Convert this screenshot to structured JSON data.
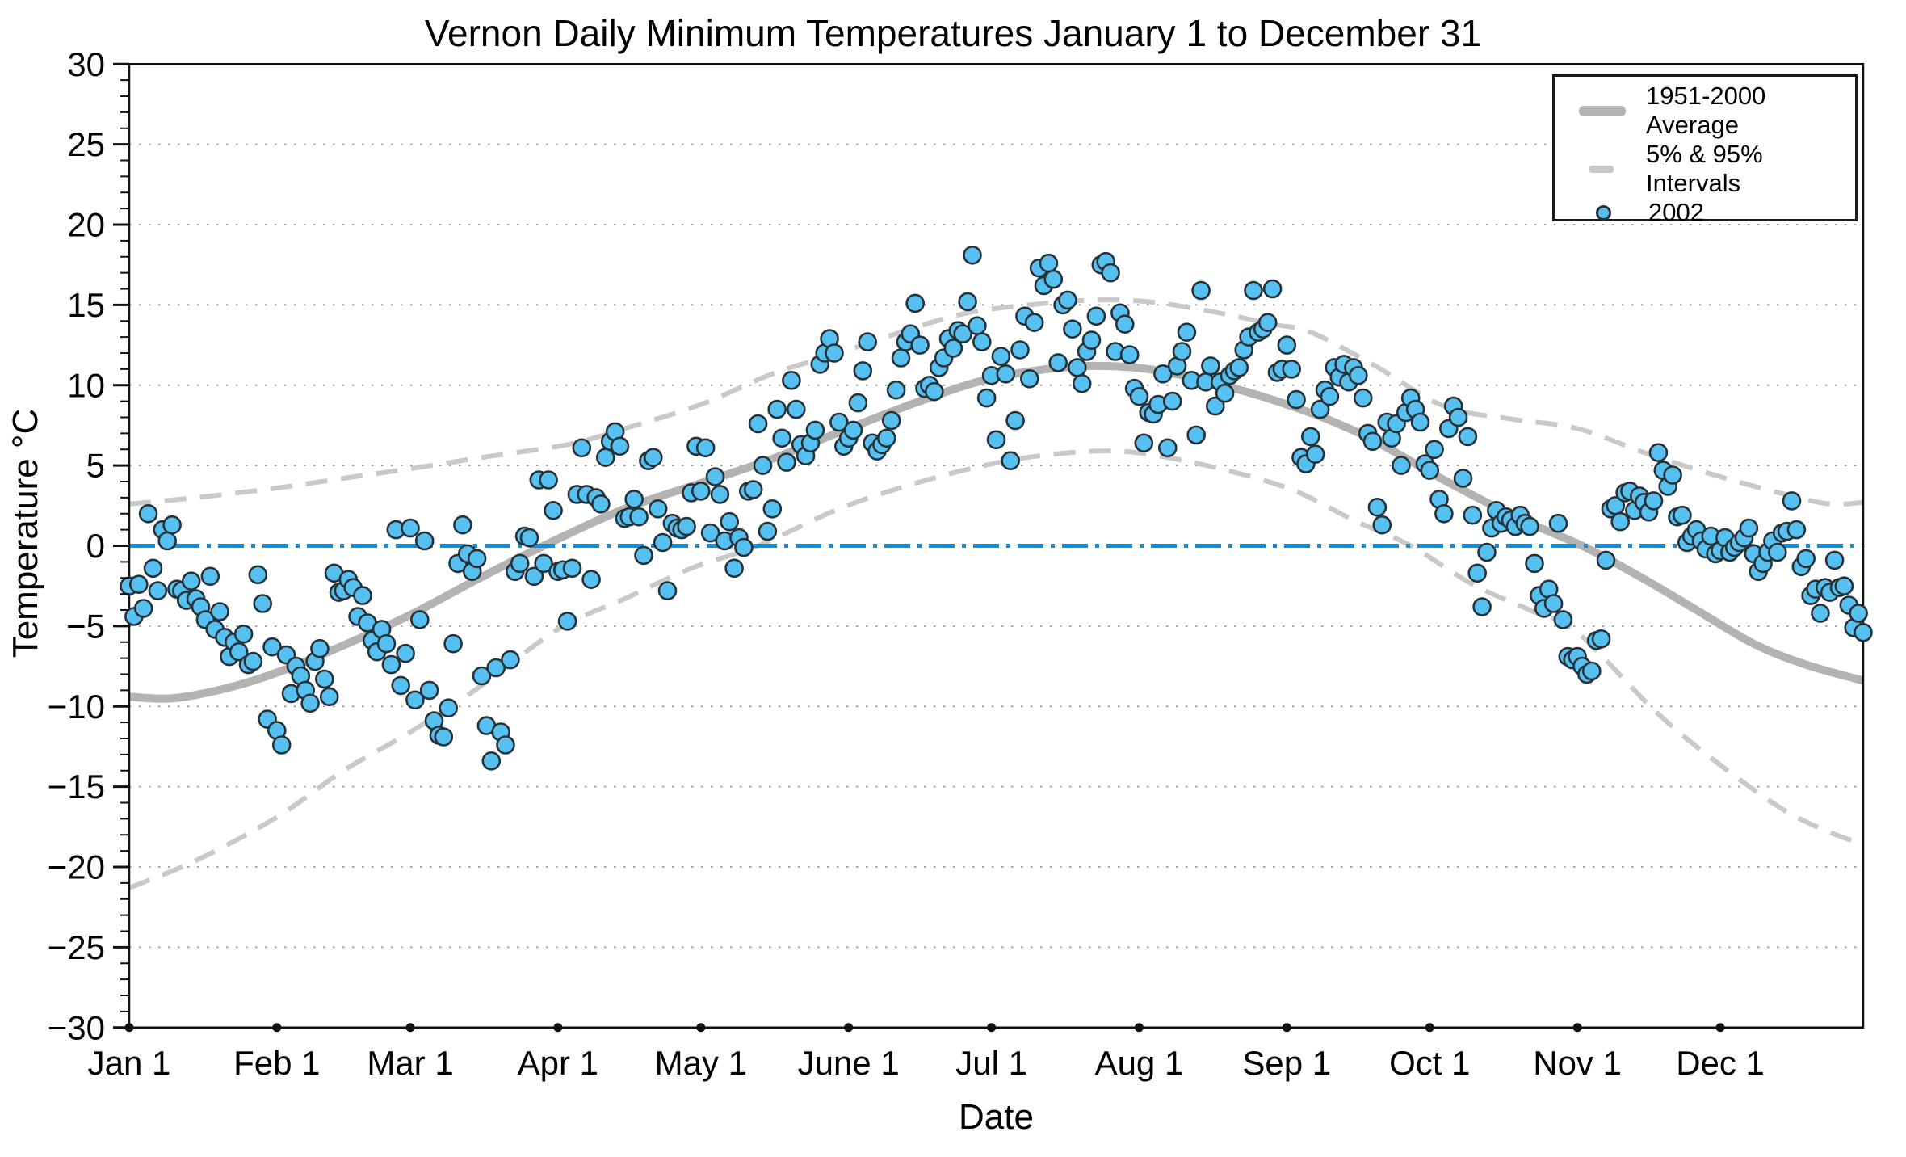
{
  "title": "Vernon Daily Minimum Temperatures January 1 to December 31",
  "axes": {
    "x": {
      "label": "Date",
      "tick_labels": [
        "Jan 1",
        "Feb 1",
        "Mar 1",
        "Apr 1",
        "May 1",
        "June 1",
        "Jul 1",
        "Aug 1",
        "Sep 1",
        "Oct 1",
        "Nov 1",
        "Dec 1"
      ],
      "tick_days": [
        1,
        32,
        60,
        91,
        121,
        152,
        182,
        213,
        244,
        274,
        305,
        335
      ],
      "range_days": [
        1,
        365
      ]
    },
    "y": {
      "label": "Temperature °C",
      "min": -30,
      "max": 30,
      "major_step": 5,
      "minor_step": 1
    }
  },
  "legend": {
    "position": "top-right",
    "items": [
      {
        "symbol": "thick-gray-line",
        "label": "1951-2000 Average"
      },
      {
        "symbol": "gray-dash",
        "label": "5% & 95% Intervals"
      },
      {
        "symbol": "blue-dot",
        "label": "2002"
      }
    ]
  },
  "colors": {
    "background": "#ffffff",
    "frame": "#111111",
    "grid": "#999999",
    "average_line": "#b3b3b3",
    "interval_line": "#c9c9c9",
    "zero_line": "#0f8de4",
    "scatter_fill": "#56c1f0",
    "scatter_edge": "#263238",
    "axis_dot": "#111111",
    "text": "#000000"
  },
  "chart_data": {
    "type": "scatter",
    "title": "Vernon Daily Minimum Temperatures January 1 to December 31",
    "xlabel": "Date",
    "ylabel": "Temperature °C",
    "ylim": [
      -30,
      30
    ],
    "x_unit": "day_of_year (1 = Jan 1, 365 = Dec 31)",
    "grid": "dotted horizontal lines every 5 °C",
    "legend_position": "top-right",
    "series": [
      {
        "name": "95% Interval (upper dashed)",
        "kind": "line",
        "color_key": "interval_line",
        "width": 6,
        "dash": "27 17",
        "points": [
          [
            1,
            2.6
          ],
          [
            15,
            3.0
          ],
          [
            32,
            3.6
          ],
          [
            46,
            4.2
          ],
          [
            60,
            4.8
          ],
          [
            75,
            5.5
          ],
          [
            93,
            6.3
          ],
          [
            105,
            7.3
          ],
          [
            121,
            8.8
          ],
          [
            136,
            10.7
          ],
          [
            150,
            12.0
          ],
          [
            165,
            13.5
          ],
          [
            177,
            14.5
          ],
          [
            190,
            15.0
          ],
          [
            203,
            15.3
          ],
          [
            215,
            15.2
          ],
          [
            228,
            14.6
          ],
          [
            241,
            13.8
          ],
          [
            249,
            13.3
          ],
          [
            262,
            11.3
          ],
          [
            277,
            8.7
          ],
          [
            291,
            7.9
          ],
          [
            305,
            7.3
          ],
          [
            320,
            5.7
          ],
          [
            335,
            4.3
          ],
          [
            350,
            3.1
          ],
          [
            358,
            2.6
          ],
          [
            365,
            2.7
          ]
        ]
      },
      {
        "name": "5% Interval (lower dashed)",
        "kind": "line",
        "color_key": "interval_line",
        "width": 6,
        "dash": "27 17",
        "points": [
          [
            1,
            -21.3
          ],
          [
            15,
            -19.6
          ],
          [
            32,
            -16.9
          ],
          [
            46,
            -14.0
          ],
          [
            60,
            -11.6
          ],
          [
            74,
            -8.9
          ],
          [
            91,
            -5.2
          ],
          [
            105,
            -3.3
          ],
          [
            119,
            -1.4
          ],
          [
            133,
            0.0
          ],
          [
            150,
            2.3
          ],
          [
            165,
            3.8
          ],
          [
            179,
            4.9
          ],
          [
            192,
            5.6
          ],
          [
            205,
            5.9
          ],
          [
            215,
            5.7
          ],
          [
            230,
            4.8
          ],
          [
            245,
            3.5
          ],
          [
            258,
            1.6
          ],
          [
            270,
            0.0
          ],
          [
            283,
            -2.4
          ],
          [
            295,
            -4.0
          ],
          [
            305,
            -5.4
          ],
          [
            321,
            -10.2
          ],
          [
            333,
            -13.2
          ],
          [
            347,
            -16.2
          ],
          [
            356,
            -17.6
          ],
          [
            365,
            -18.6
          ]
        ]
      },
      {
        "name": "1951-2000 Average",
        "kind": "line",
        "color_key": "average_line",
        "width": 10,
        "dash": "",
        "points": [
          [
            1,
            -9.4
          ],
          [
            10,
            -9.5
          ],
          [
            21,
            -8.9
          ],
          [
            32,
            -7.9
          ],
          [
            46,
            -6.2
          ],
          [
            60,
            -4.3
          ],
          [
            74,
            -2.1
          ],
          [
            88,
            0.0
          ],
          [
            105,
            2.3
          ],
          [
            121,
            3.9
          ],
          [
            135,
            5.3
          ],
          [
            152,
            7.3
          ],
          [
            166,
            8.9
          ],
          [
            179,
            10.2
          ],
          [
            191,
            10.9
          ],
          [
            203,
            11.2
          ],
          [
            215,
            11.0
          ],
          [
            228,
            10.2
          ],
          [
            245,
            8.7
          ],
          [
            260,
            6.9
          ],
          [
            277,
            4.1
          ],
          [
            292,
            1.8
          ],
          [
            306,
            0.0
          ],
          [
            318,
            -1.9
          ],
          [
            330,
            -4.0
          ],
          [
            342,
            -6.1
          ],
          [
            353,
            -7.4
          ],
          [
            365,
            -8.4
          ]
        ]
      },
      {
        "name": "0 °C reference line",
        "kind": "line",
        "color_key": "zero_line",
        "width": 5,
        "dash": "32 9 5 9",
        "points": [
          [
            1,
            0
          ],
          [
            365,
            0
          ]
        ]
      },
      {
        "name": "2002",
        "kind": "scatter",
        "color_key": "scatter_fill",
        "edge_key": "scatter_edge",
        "radius": 10.5,
        "edge_width": 2.6,
        "values_start_day": 1,
        "values": [
          -2.5,
          -4.4,
          -2.4,
          -3.9,
          2,
          -1.4,
          -2.8,
          1,
          0.3,
          1.3,
          -2.7,
          -2.8,
          -3.4,
          -2.2,
          -3.3,
          -3.8,
          -4.6,
          -1.9,
          -5.2,
          -4.1,
          -5.7,
          -6.9,
          -6,
          -6.6,
          -5.5,
          -7.4,
          -7.2,
          -1.8,
          -3.6,
          -10.8,
          -6.3,
          -11.5,
          -12.4,
          -6.8,
          -9.2,
          -7.5,
          -8.1,
          -9,
          -9.8,
          -7.2,
          -6.4,
          -8.3,
          -9.4,
          -1.7,
          -2.9,
          -2.8,
          -2.1,
          -2.6,
          -4.4,
          -3.1,
          -4.8,
          -5.9,
          -6.6,
          -5.2,
          -6.1,
          -7.4,
          1,
          -8.7,
          -6.7,
          1.1,
          -9.6,
          -4.6,
          0.3,
          -9,
          -10.9,
          -11.8,
          -11.9,
          -10.1,
          -6.1,
          -1.1,
          1.3,
          -0.5,
          -1.6,
          -0.8,
          -8.1,
          -11.2,
          -13.4,
          -7.6,
          -11.6,
          -12.4,
          -7.1,
          -1.6,
          -1.1,
          0.6,
          0.5,
          -1.9,
          4.1,
          -1.1,
          4.1,
          2.2,
          -1.6,
          -1.5,
          -4.7,
          -1.4,
          3.2,
          6.1,
          3.2,
          -2.1,
          3,
          2.6,
          5.5,
          6.5,
          7.1,
          6.2,
          1.7,
          1.8,
          2.9,
          1.8,
          -0.6,
          5.3,
          5.5,
          2.3,
          0.2,
          -2.8,
          1.4,
          1.1,
          1,
          1.2,
          3.3,
          6.2,
          3.4,
          6.1,
          0.8,
          4.3,
          3.2,
          0.3,
          1.5,
          -1.4,
          0.5,
          -0.1,
          3.4,
          3.5,
          7.6,
          5,
          0.9,
          2.3,
          8.5,
          6.7,
          5.2,
          10.3,
          8.5,
          6.3,
          5.6,
          6.4,
          7.2,
          11.3,
          12,
          12.9,
          12,
          7.7,
          6.2,
          6.7,
          7.2,
          8.9,
          10.9,
          12.7,
          6.4,
          5.9,
          6.3,
          6.7,
          7.8,
          9.7,
          11.7,
          12.7,
          13.2,
          15.1,
          12.5,
          9.8,
          10,
          9.6,
          11.1,
          11.7,
          12.9,
          12.3,
          13.4,
          13.2,
          15.2,
          18.1,
          13.7,
          12.7,
          9.2,
          10.6,
          6.6,
          11.8,
          10.7,
          5.3,
          7.8,
          12.2,
          14.3,
          10.4,
          13.9,
          17.3,
          16.2,
          17.6,
          16.6,
          11.4,
          15,
          15.3,
          13.5,
          11.1,
          10.1,
          12.1,
          12.8,
          14.3,
          17.5,
          17.7,
          17,
          12.1,
          14.5,
          13.8,
          11.9,
          9.8,
          9.3,
          6.4,
          8.3,
          8.2,
          8.8,
          10.7,
          6.1,
          9,
          11.2,
          12.1,
          13.3,
          10.3,
          6.9,
          15.9,
          10.2,
          11.2,
          8.7,
          10.2,
          9.5,
          10.6,
          10.9,
          11.1,
          12.2,
          13,
          15.9,
          13.3,
          13.5,
          13.9,
          16,
          10.8,
          11,
          12.5,
          11,
          9.1,
          5.5,
          5.1,
          6.8,
          5.7,
          8.5,
          9.7,
          9.3,
          11.1,
          10.5,
          11.3,
          10.2,
          11.1,
          10.6,
          9.2,
          7,
          6.5,
          2.4,
          1.3,
          7.7,
          6.7,
          7.6,
          5,
          8.3,
          9.2,
          8.5,
          7.7,
          5.1,
          4.7,
          6,
          2.9,
          2,
          7.3,
          8.7,
          8,
          4.2,
          6.8,
          1.9,
          -1.7,
          -3.8,
          -0.4,
          1.1,
          2.2,
          1.4,
          1.8,
          1.6,
          1.2,
          1.9,
          1.4,
          1.2,
          -1.1,
          -3.1,
          -3.9,
          -2.7,
          -3.6,
          1.4,
          -4.6,
          -6.9,
          -7.1,
          -6.9,
          -7.5,
          -8,
          -7.8,
          -5.9,
          -5.8,
          -0.9,
          2.3,
          2.5,
          1.5,
          3.3,
          3.4,
          2.2,
          3.1,
          2.7,
          2.1,
          2.8,
          5.8,
          4.7,
          3.7,
          4.4,
          1.8,
          1.9,
          0.2,
          0.6,
          1,
          0.3,
          -0.2,
          0.6,
          -0.5,
          -0.3,
          0.5,
          -0.4,
          -0.1,
          0.2,
          0.5,
          1.1,
          -0.5,
          -1.6,
          -1.1,
          -0.4,
          0.3,
          -0.4,
          0.8,
          0.9,
          2.8,
          1,
          -1.3,
          -0.8,
          -3.1,
          -2.7,
          -4.2,
          -2.6,
          -2.9,
          -0.9,
          -2.6,
          -2.5,
          -3.7,
          -5.1,
          -4.2,
          -5.4
        ]
      }
    ]
  }
}
